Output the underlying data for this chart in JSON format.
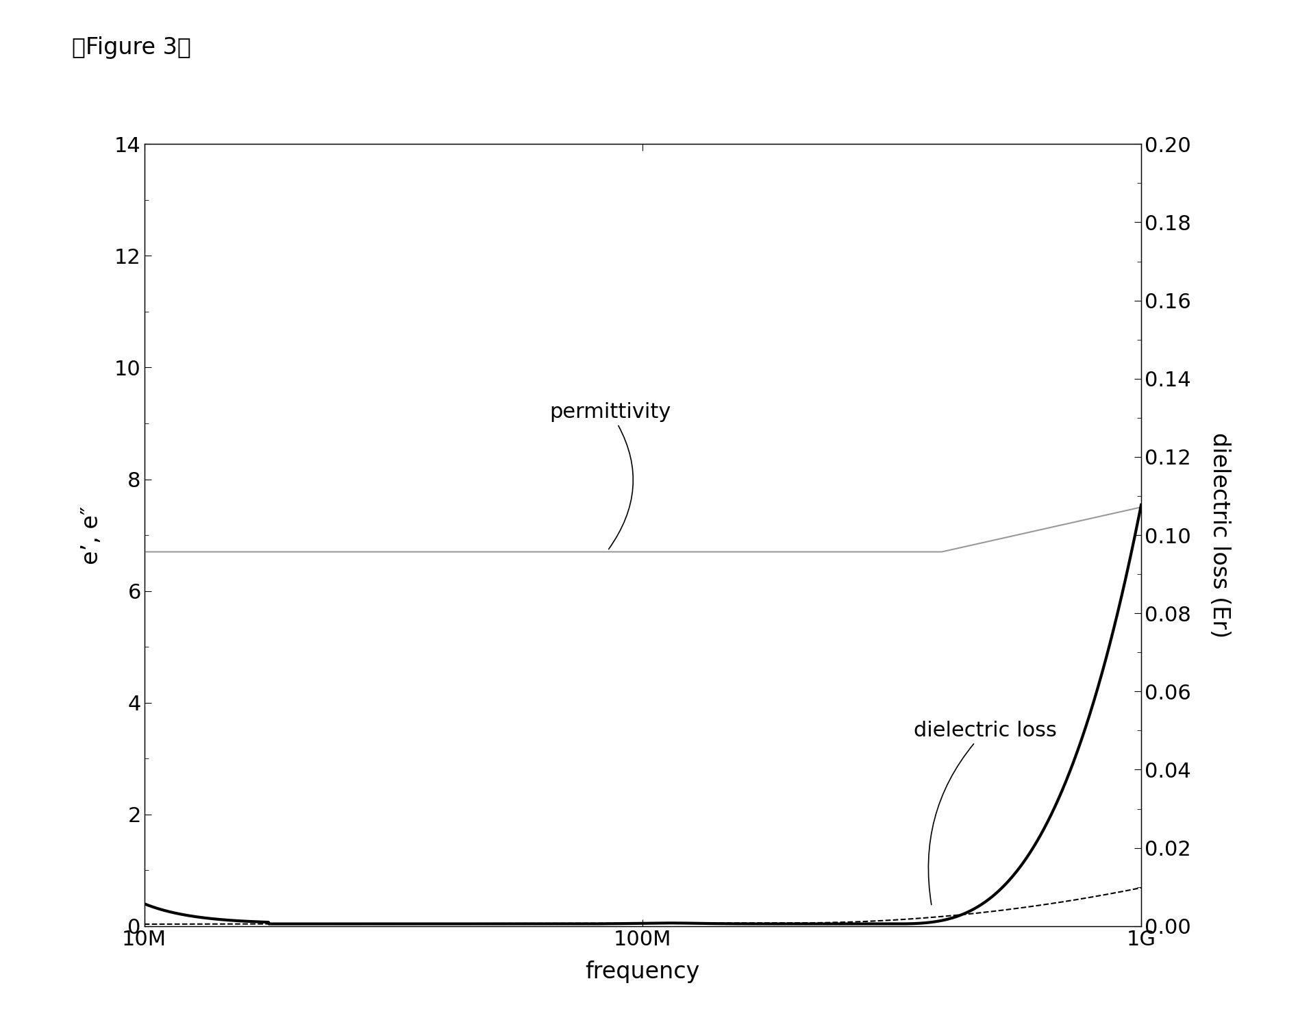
{
  "title_text": "【Figure 3】",
  "xlabel": "frequency",
  "ylabel_left": "e’, e″",
  "ylabel_right": "dielectric loss (Er)",
  "xlim_vals": [
    10000000.0,
    1000000000.0
  ],
  "ylim_left": [
    0,
    14
  ],
  "ylim_right": [
    0,
    0.2
  ],
  "xtick_positions": [
    10000000.0,
    100000000.0,
    1000000000.0
  ],
  "xtick_labels": [
    "10M",
    "100M",
    "1G"
  ],
  "ytick_left": [
    0,
    2,
    4,
    6,
    8,
    10,
    12,
    14
  ],
  "ytick_right": [
    0.0,
    0.02,
    0.04,
    0.06,
    0.08,
    0.1,
    0.12,
    0.14,
    0.16,
    0.18,
    0.2
  ],
  "background_color": "#ffffff",
  "line_color_permittivity": "#999999",
  "line_color_dielectric": "#000000",
  "line_color_dashed": "#000000",
  "annotation_permittivity": "permittivity",
  "annotation_dielectric": "dielectric loss"
}
